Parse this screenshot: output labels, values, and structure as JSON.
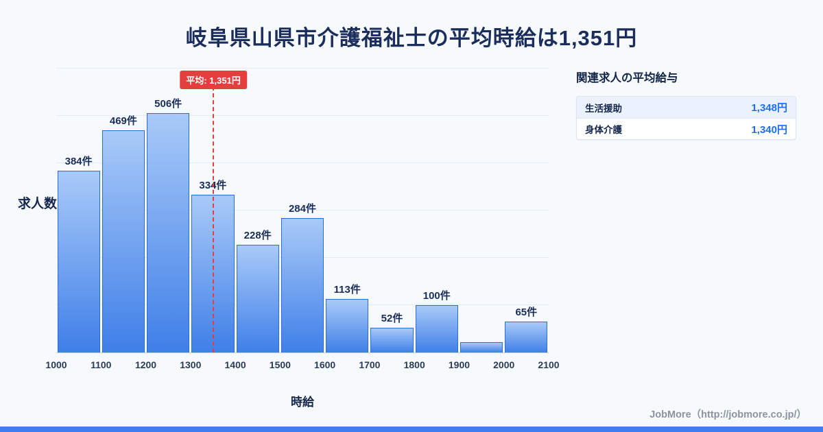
{
  "page": {
    "title": "岐阜県山県市介護福祉士の平均時給は1,351円",
    "footer_credit": "JobMore（http://jobmore.co.jp/）"
  },
  "colors": {
    "title_navy": "#1b2d5b",
    "bar_gradient_top": "#a9caf8",
    "bar_gradient_bottom": "#3f7fe8",
    "bar_border": "#2e6cd2",
    "average_red": "#e53e3e",
    "value_blue": "#1d6ff2",
    "bottom_strip_blue": "#3e7ef0",
    "background": "#f7fafd"
  },
  "chart_data": {
    "type": "bar",
    "title": "岐阜県山県市介護福祉士の平均時給は1,351円",
    "xlabel": "時給",
    "ylabel": "求人数",
    "x_min": 1000,
    "x_max": 2100,
    "scale_max": 600,
    "gridline_step": 100,
    "grid": true,
    "legend": "none",
    "x_ticks": [
      "1000",
      "1100",
      "1200",
      "1300",
      "1400",
      "1500",
      "1600",
      "1700",
      "1800",
      "1900",
      "2000",
      "2100"
    ],
    "bars": [
      {
        "x_start": 1000,
        "x_end": 1100,
        "value": 384,
        "label": "384件"
      },
      {
        "x_start": 1100,
        "x_end": 1200,
        "value": 469,
        "label": "469件"
      },
      {
        "x_start": 1200,
        "x_end": 1300,
        "value": 506,
        "label": "506件"
      },
      {
        "x_start": 1300,
        "x_end": 1400,
        "value": 334,
        "label": "334件"
      },
      {
        "x_start": 1400,
        "x_end": 1500,
        "value": 228,
        "label": "228件"
      },
      {
        "x_start": 1500,
        "x_end": 1600,
        "value": 284,
        "label": "284件"
      },
      {
        "x_start": 1600,
        "x_end": 1700,
        "value": 113,
        "label": "113件"
      },
      {
        "x_start": 1700,
        "x_end": 1800,
        "value": 52,
        "label": "52件"
      },
      {
        "x_start": 1800,
        "x_end": 1900,
        "value": 100,
        "label": "100件"
      },
      {
        "x_start": 1900,
        "x_end": 2000,
        "value": 22,
        "label": ""
      },
      {
        "x_start": 2000,
        "x_end": 2100,
        "value": 65,
        "label": "65件"
      }
    ],
    "average_line": {
      "value": 1351,
      "label": "平均: 1,351円"
    }
  },
  "side_panel": {
    "heading": "関連求人の平均給与",
    "rows": [
      {
        "label": "生活援助",
        "value": "1,348円"
      },
      {
        "label": "身体介護",
        "value": "1,340円"
      }
    ]
  }
}
